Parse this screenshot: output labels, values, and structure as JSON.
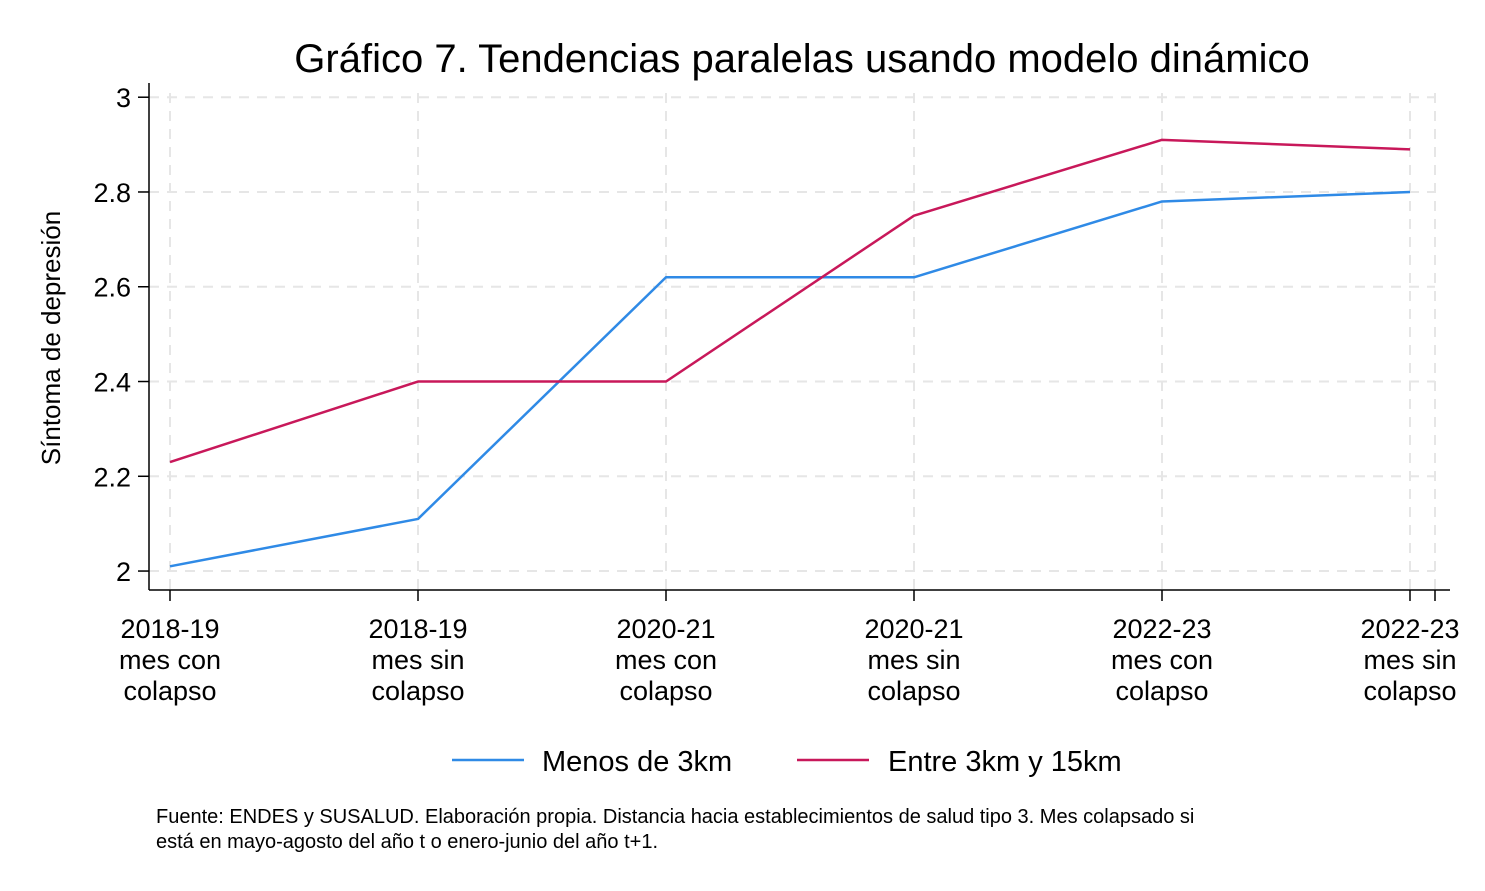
{
  "chart_data": {
    "type": "line",
    "title": "Gráfico 7. Tendencias paralelas usando modelo dinámico",
    "xlabel": "",
    "ylabel": "Síntoma de depresión",
    "categories": [
      [
        "2018-19",
        "mes con",
        "colapso"
      ],
      [
        "2018-19",
        "mes sin",
        "colapso"
      ],
      [
        "2020-21",
        "mes con",
        "colapso"
      ],
      [
        "2020-21",
        "mes sin",
        "colapso"
      ],
      [
        "2022-23",
        "mes con",
        "colapso"
      ],
      [
        "2022-23",
        "mes sin",
        "colapso"
      ]
    ],
    "y_ticks": [
      "2",
      "2.2",
      "2.4",
      "2.6",
      "2.8",
      "3"
    ],
    "ylim": [
      1.96,
      3.03
    ],
    "grid": true,
    "legend_position": "bottom",
    "series": [
      {
        "name": "Menos de 3km",
        "color": "#2f8ae6",
        "values": [
          2.01,
          2.11,
          2.62,
          2.62,
          2.78,
          2.8
        ]
      },
      {
        "name": "Entre 3km y 15km",
        "color": "#c8185a",
        "values": [
          2.23,
          2.4,
          2.4,
          2.75,
          2.91,
          2.89
        ]
      }
    ],
    "note": [
      "Fuente: ENDES y SUSALUD. Elaboración propia. Distancia hacia establecimientos de salud tipo 3. Mes colapsado si",
      "está en mayo-agosto del año t o enero-junio del año t+1."
    ]
  }
}
